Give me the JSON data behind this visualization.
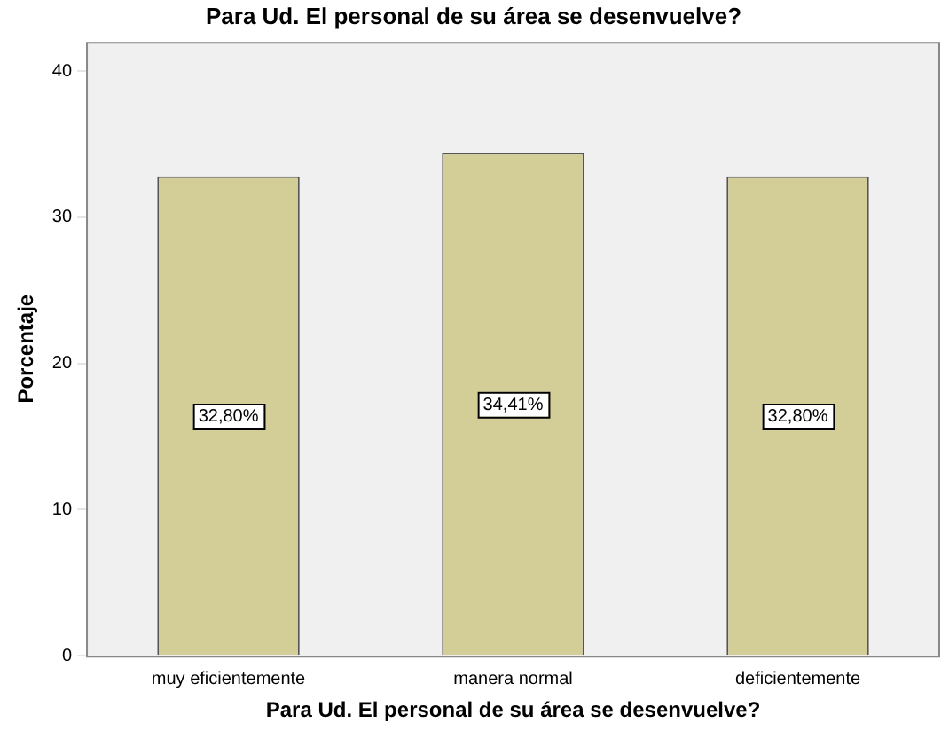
{
  "chart_data": {
    "type": "bar",
    "title": "Para Ud. El personal de su área se desenvuelve?",
    "xlabel": "Para Ud. El personal de su área se desenvuelve?",
    "ylabel": "Porcentaje",
    "categories": [
      "muy eficientemente",
      "manera normal",
      "deficientemente"
    ],
    "values": [
      32.8,
      34.41,
      32.8
    ],
    "color": "#d3ce97",
    "value_labels": [
      "32,80%",
      "34,41%",
      "32,80%"
    ],
    "ylim": [
      0,
      42
    ],
    "yticks": [
      0,
      10,
      20,
      30,
      40
    ],
    "grid": false,
    "legend": false
  }
}
